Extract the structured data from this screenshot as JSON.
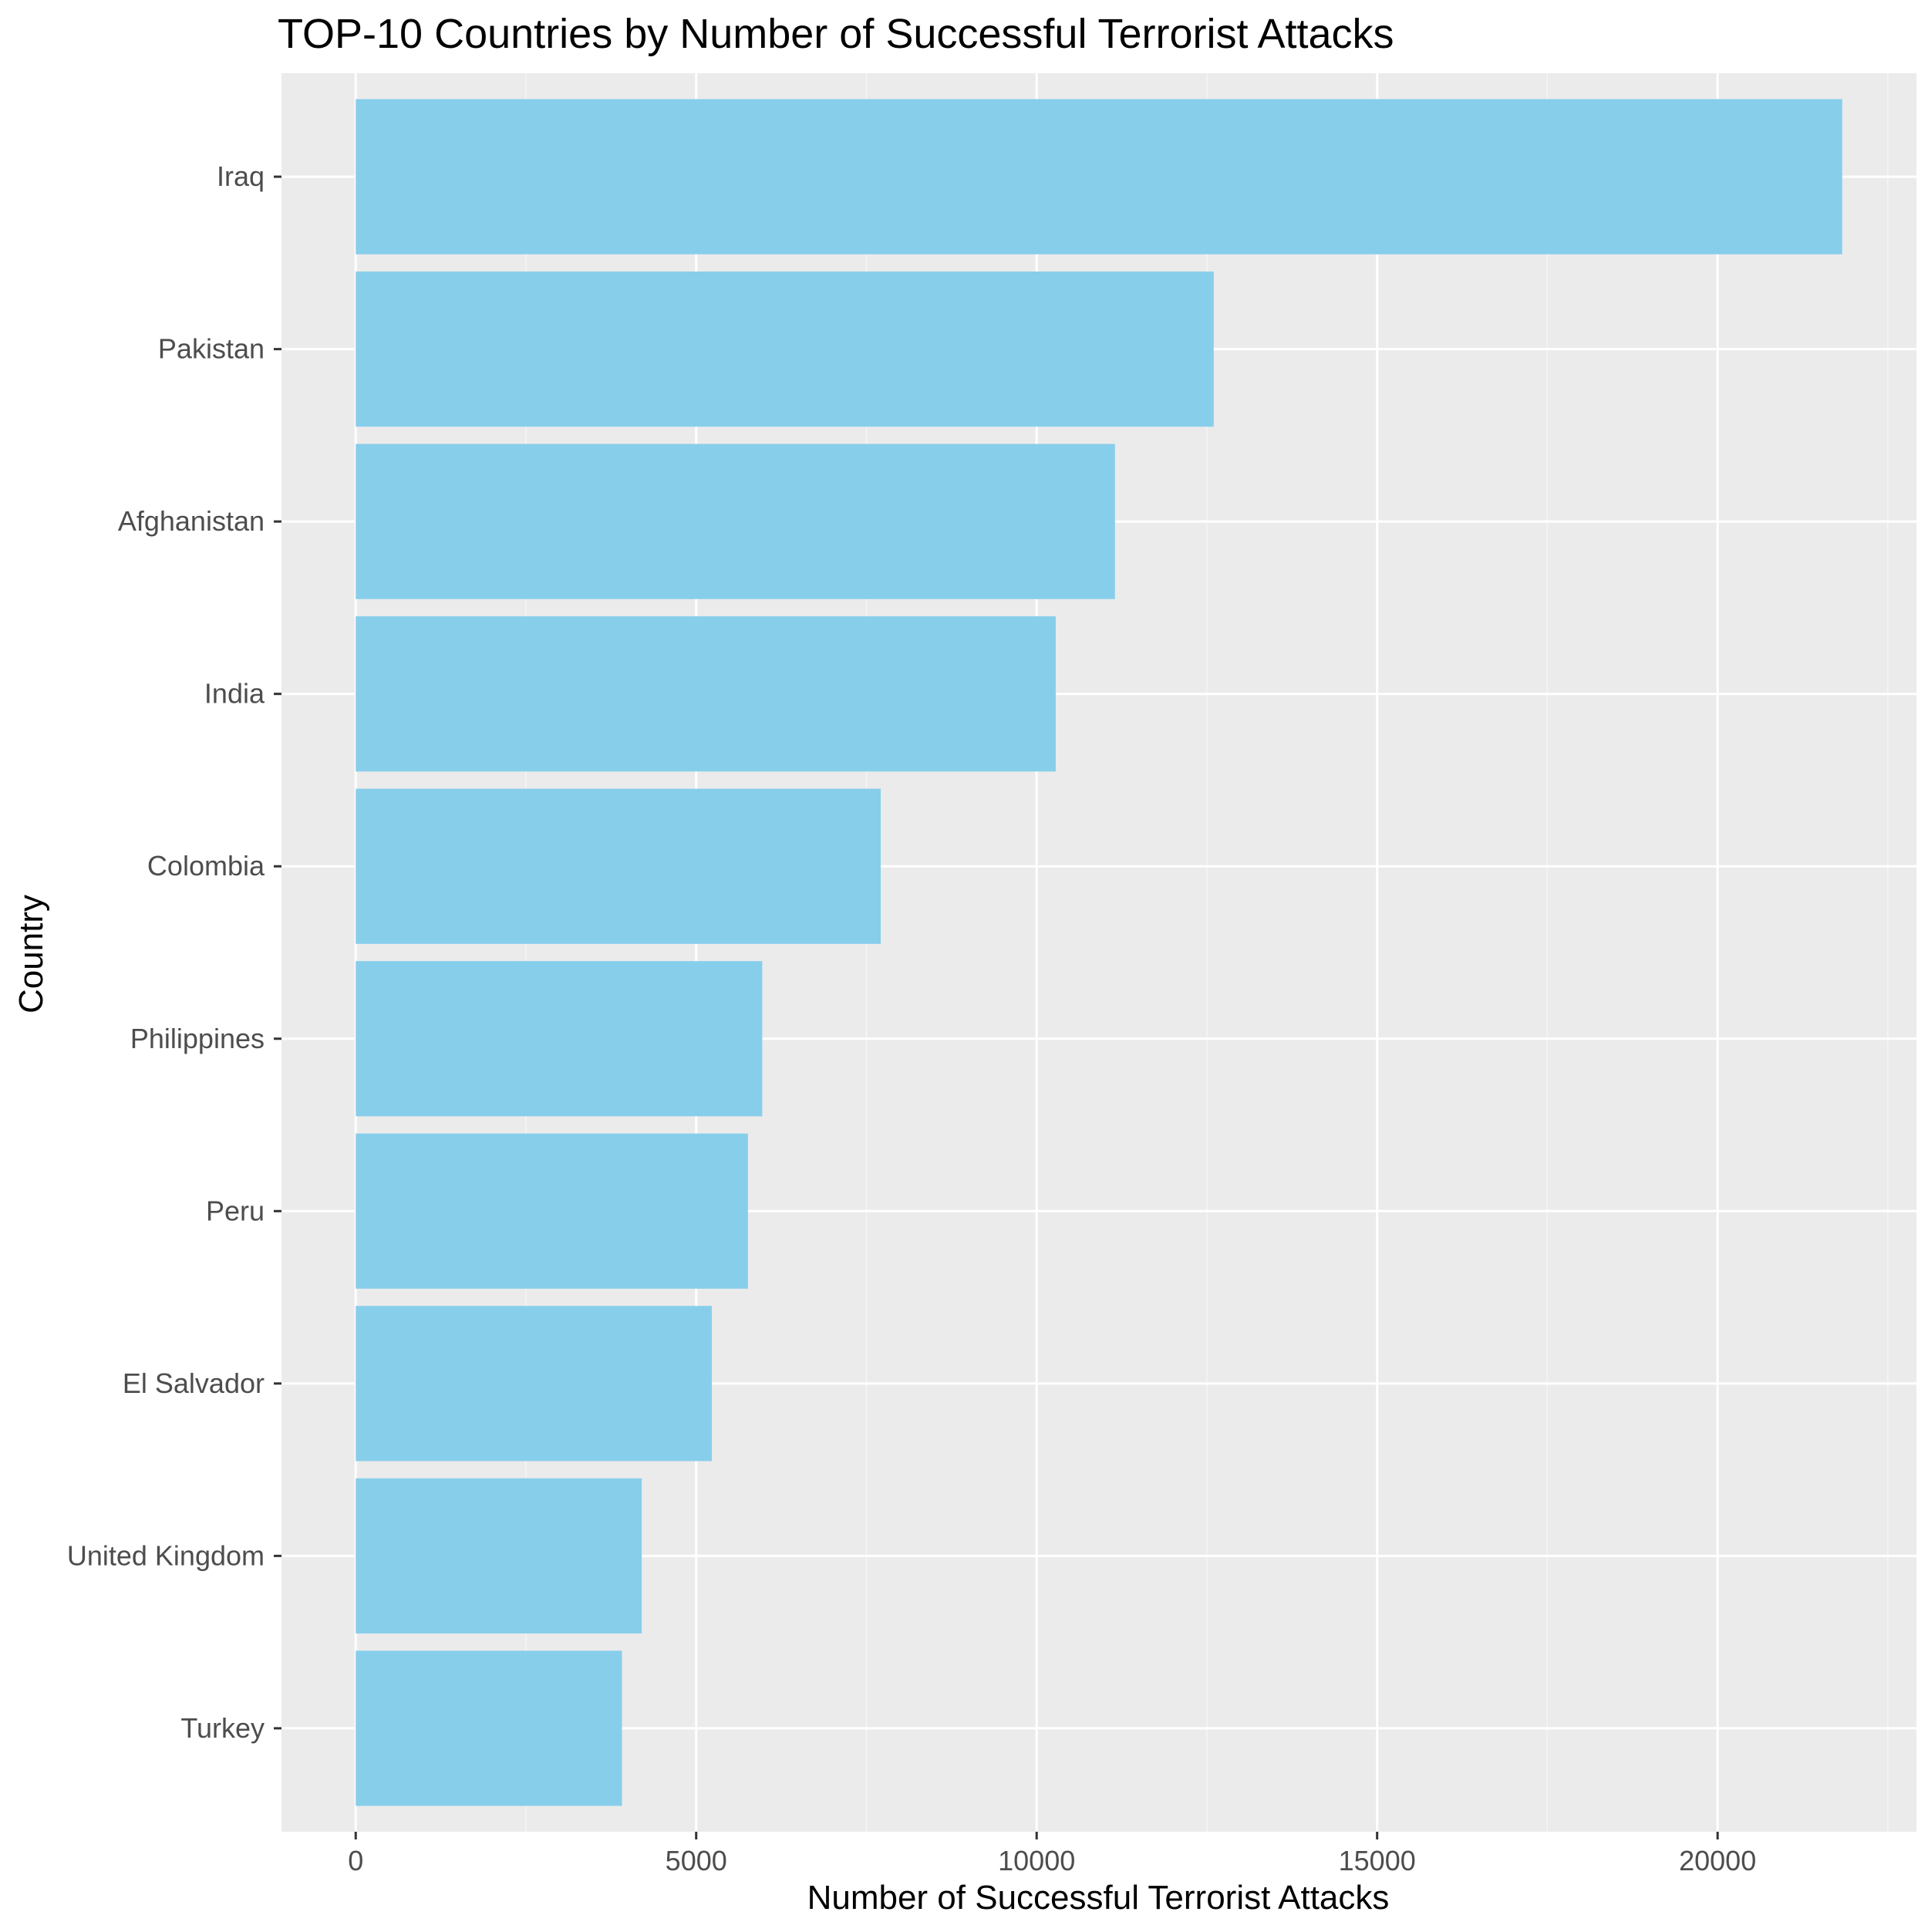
{
  "colors": {
    "bar": "#87CEEB",
    "panel_background": "#EBEBEB",
    "grid_major": "#FFFFFF",
    "grid_minor": "#F5F5F5",
    "tick_mark": "#333333",
    "tick_label": "#4D4D4D",
    "text": "#000000"
  },
  "chart_data": {
    "type": "bar",
    "orientation": "horizontal",
    "title": "TOP-10 Countries by Number of Successful Terrorist Attacks",
    "xlabel": "Number of Successful Terrorist Attacks",
    "ylabel": "Country",
    "categories": [
      "Iraq",
      "Pakistan",
      "Afghanistan",
      "India",
      "Colombia",
      "Philippines",
      "Peru",
      "El Salvador",
      "United Kingdom",
      "Turkey"
    ],
    "values": [
      21830,
      12600,
      11150,
      10280,
      7710,
      5970,
      5760,
      5230,
      4200,
      3910
    ],
    "x_ticks": [
      "0",
      "5000",
      "10000",
      "15000",
      "20000"
    ],
    "x_tick_values": [
      0,
      5000,
      10000,
      15000,
      20000
    ],
    "xlim": [
      -1090,
      22920
    ],
    "grid": true,
    "legend": "none"
  }
}
